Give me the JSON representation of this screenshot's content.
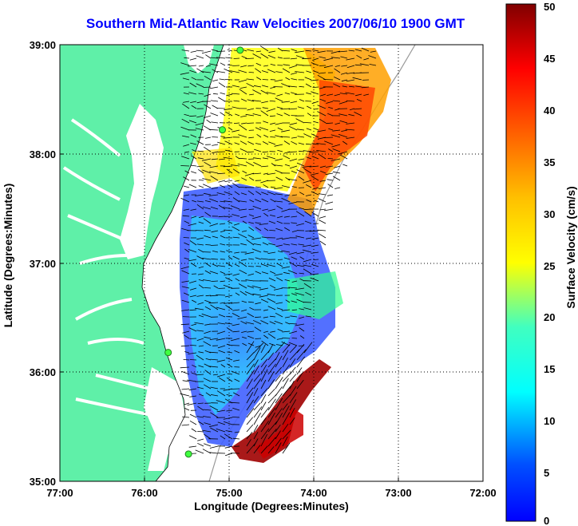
{
  "title": "Southern Mid-Atlantic Raw Velocities 2007/06/10 1900 GMT",
  "map": {
    "xlabel": "Longitude (Degrees:Minutes)",
    "ylabel": "Latitude (Degrees:Minutes)",
    "lon_ticks": [
      "77:00",
      "76:00",
      "75:00",
      "74:00",
      "73:00",
      "72:00"
    ],
    "lat_ticks": [
      "39:00",
      "38:00",
      "37:00",
      "36:00",
      "35:00"
    ],
    "lon_range": [
      -77,
      -72
    ],
    "lat_range": [
      35,
      39
    ],
    "land_color": "#5ff0a8",
    "grid": "dotted"
  },
  "colorbar": {
    "label": "Surface Velocity (cm/s)",
    "ticks": [
      "0",
      "5",
      "10",
      "15",
      "20",
      "25",
      "30",
      "35",
      "40",
      "45",
      "50"
    ],
    "range": [
      0,
      50
    ],
    "colormap": "jet"
  },
  "stations": [
    {
      "lon": -74.87,
      "lat": 38.95
    },
    {
      "lon": -75.08,
      "lat": 38.22
    },
    {
      "lon": -75.72,
      "lat": 36.18
    },
    {
      "lon": -75.48,
      "lat": 35.25
    }
  ]
}
